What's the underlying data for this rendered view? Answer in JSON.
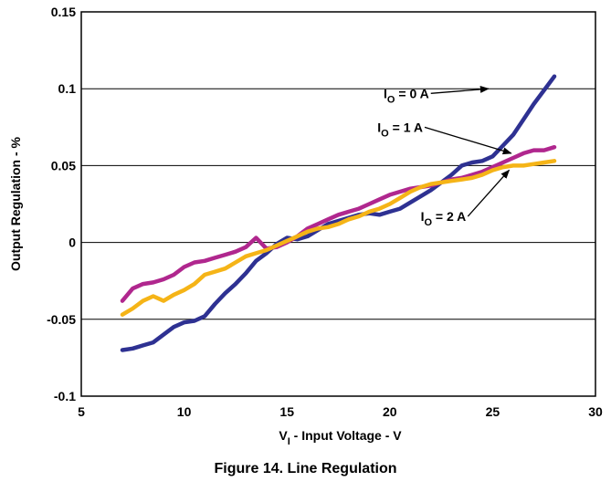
{
  "caption": "Figure 14. Line Regulation",
  "chart_data": {
    "type": "line",
    "xlabel_main": "V",
    "xlabel_sub": "I",
    "xlabel_rest": " - Input Voltage - V",
    "ylabel": "Output Regulation - %",
    "xlim": [
      5,
      30
    ],
    "ylim": [
      -0.1,
      0.15
    ],
    "xticks": [
      5,
      10,
      15,
      20,
      25,
      30
    ],
    "yticks": [
      -0.1,
      -0.05,
      0,
      0.05,
      0.1,
      0.15
    ],
    "ytick_labels": [
      "-0.1",
      "-0.05",
      "0",
      "0.05",
      "0.1",
      "0.15"
    ],
    "grid": "horizontal",
    "series": [
      {
        "name": "IO = 0 A",
        "label_main": "I",
        "label_sub": "O",
        "label_rest": " = 0 A",
        "color": "#2E3192",
        "x": [
          7,
          7.5,
          8,
          8.5,
          9,
          9.5,
          10,
          10.5,
          11,
          11.5,
          12,
          12.5,
          13,
          13.5,
          14,
          14.5,
          15,
          15.5,
          16,
          16.5,
          17,
          17.5,
          18,
          18.5,
          19,
          19.5,
          20,
          20.5,
          21,
          21.5,
          22,
          22.5,
          23,
          23.5,
          24,
          24.5,
          25,
          25.5,
          26,
          26.5,
          27,
          27.5,
          28
        ],
        "y": [
          -0.07,
          -0.069,
          -0.067,
          -0.065,
          -0.06,
          -0.055,
          -0.052,
          -0.051,
          -0.048,
          -0.04,
          -0.033,
          -0.027,
          -0.02,
          -0.012,
          -0.007,
          -0.001,
          0.003,
          0.002,
          0.004,
          0.008,
          0.012,
          0.014,
          0.016,
          0.018,
          0.019,
          0.018,
          0.02,
          0.022,
          0.026,
          0.03,
          0.034,
          0.039,
          0.044,
          0.05,
          0.052,
          0.053,
          0.056,
          0.063,
          0.07,
          0.08,
          0.09,
          0.099,
          0.108
        ]
      },
      {
        "name": "IO = 1 A",
        "label_main": "I",
        "label_sub": "O",
        "label_rest": " = 1 A",
        "color": "#B0278E",
        "x": [
          7,
          7.5,
          8,
          8.5,
          9,
          9.5,
          10,
          10.5,
          11,
          11.5,
          12,
          12.5,
          13,
          13.5,
          14,
          14.5,
          15,
          15.5,
          16,
          16.5,
          17,
          17.5,
          18,
          18.5,
          19,
          19.5,
          20,
          20.5,
          21,
          21.5,
          22,
          22.5,
          23,
          23.5,
          24,
          24.5,
          25,
          25.5,
          26,
          26.5,
          27,
          27.5,
          28
        ],
        "y": [
          -0.038,
          -0.03,
          -0.027,
          -0.026,
          -0.024,
          -0.021,
          -0.016,
          -0.013,
          -0.012,
          -0.01,
          -0.008,
          -0.006,
          -0.003,
          0.003,
          -0.004,
          -0.003,
          0.0,
          0.004,
          0.009,
          0.012,
          0.015,
          0.018,
          0.02,
          0.022,
          0.025,
          0.028,
          0.031,
          0.033,
          0.035,
          0.036,
          0.037,
          0.039,
          0.041,
          0.042,
          0.044,
          0.046,
          0.049,
          0.052,
          0.055,
          0.058,
          0.06,
          0.06,
          0.062
        ]
      },
      {
        "name": "IO = 2 A",
        "label_main": "I",
        "label_sub": "O",
        "label_rest": " = 2 A",
        "color": "#F5B417",
        "x": [
          7,
          7.5,
          8,
          8.5,
          9,
          9.5,
          10,
          10.5,
          11,
          11.5,
          12,
          12.5,
          13,
          13.5,
          14,
          14.5,
          15,
          15.5,
          16,
          16.5,
          17,
          17.5,
          18,
          18.5,
          19,
          19.5,
          20,
          20.5,
          21,
          21.5,
          22,
          22.5,
          23,
          23.5,
          24,
          24.5,
          25,
          25.5,
          26,
          26.5,
          27,
          27.5,
          28
        ],
        "y": [
          -0.047,
          -0.043,
          -0.038,
          -0.035,
          -0.038,
          -0.034,
          -0.031,
          -0.027,
          -0.021,
          -0.019,
          -0.017,
          -0.013,
          -0.009,
          -0.007,
          -0.005,
          -0.002,
          0.001,
          0.004,
          0.007,
          0.009,
          0.01,
          0.012,
          0.015,
          0.017,
          0.02,
          0.022,
          0.025,
          0.029,
          0.033,
          0.036,
          0.038,
          0.039,
          0.04,
          0.041,
          0.042,
          0.044,
          0.047,
          0.049,
          0.05,
          0.05,
          0.051,
          0.052,
          0.053
        ]
      }
    ],
    "annotations": [
      {
        "series": 0,
        "tx": 19.7,
        "ty": 0.094,
        "ax": 24.8,
        "ay": 0.1
      },
      {
        "series": 1,
        "tx": 19.4,
        "ty": 0.072,
        "ax": 25.9,
        "ay": 0.058
      },
      {
        "series": 2,
        "tx": 21.5,
        "ty": 0.014,
        "ax": 25.8,
        "ay": 0.047
      }
    ]
  }
}
